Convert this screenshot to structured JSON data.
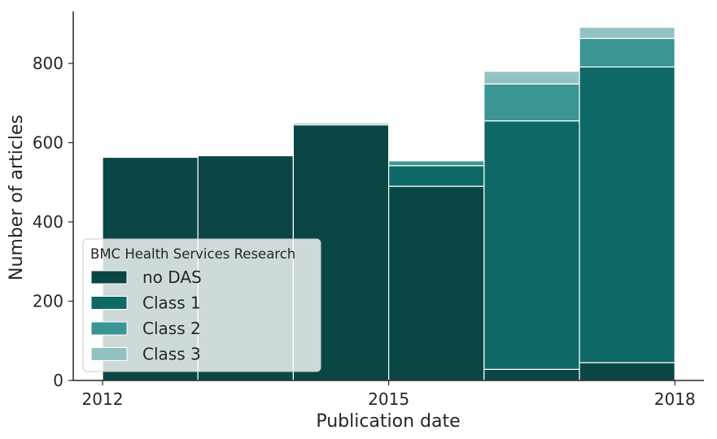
{
  "chart_data": {
    "type": "bar",
    "stacked": true,
    "xlabel": "Publication date",
    "ylabel": "Number of articles",
    "x_ticks": [
      "2012",
      "2015",
      "2018"
    ],
    "y_ticks": [
      "0",
      "200",
      "400",
      "600",
      "800"
    ],
    "ylim": [
      0,
      935
    ],
    "bins": [
      {
        "start": 2012.0,
        "end": 2013.0
      },
      {
        "start": 2013.0,
        "end": 2014.0
      },
      {
        "start": 2014.0,
        "end": 2015.0
      },
      {
        "start": 2015.0,
        "end": 2016.0
      },
      {
        "start": 2016.0,
        "end": 2017.0
      },
      {
        "start": 2017.0,
        "end": 2018.0
      }
    ],
    "series": [
      {
        "name": "no DAS",
        "color": "#0b4646",
        "values": [
          563,
          567,
          645,
          490,
          28,
          45
        ]
      },
      {
        "name": "Class 1",
        "color": "#0e6866",
        "values": [
          0,
          0,
          0,
          52,
          627,
          746
        ]
      },
      {
        "name": "Class 2",
        "color": "#3a9593",
        "values": [
          0,
          0,
          4,
          12,
          93,
          72
        ]
      },
      {
        "name": "Class 3",
        "color": "#93c2c2",
        "values": [
          0,
          0,
          2,
          0,
          32,
          28
        ]
      }
    ],
    "legend": {
      "title": "BMC Health Services Research",
      "placement": "lower-left"
    },
    "grid": false
  }
}
